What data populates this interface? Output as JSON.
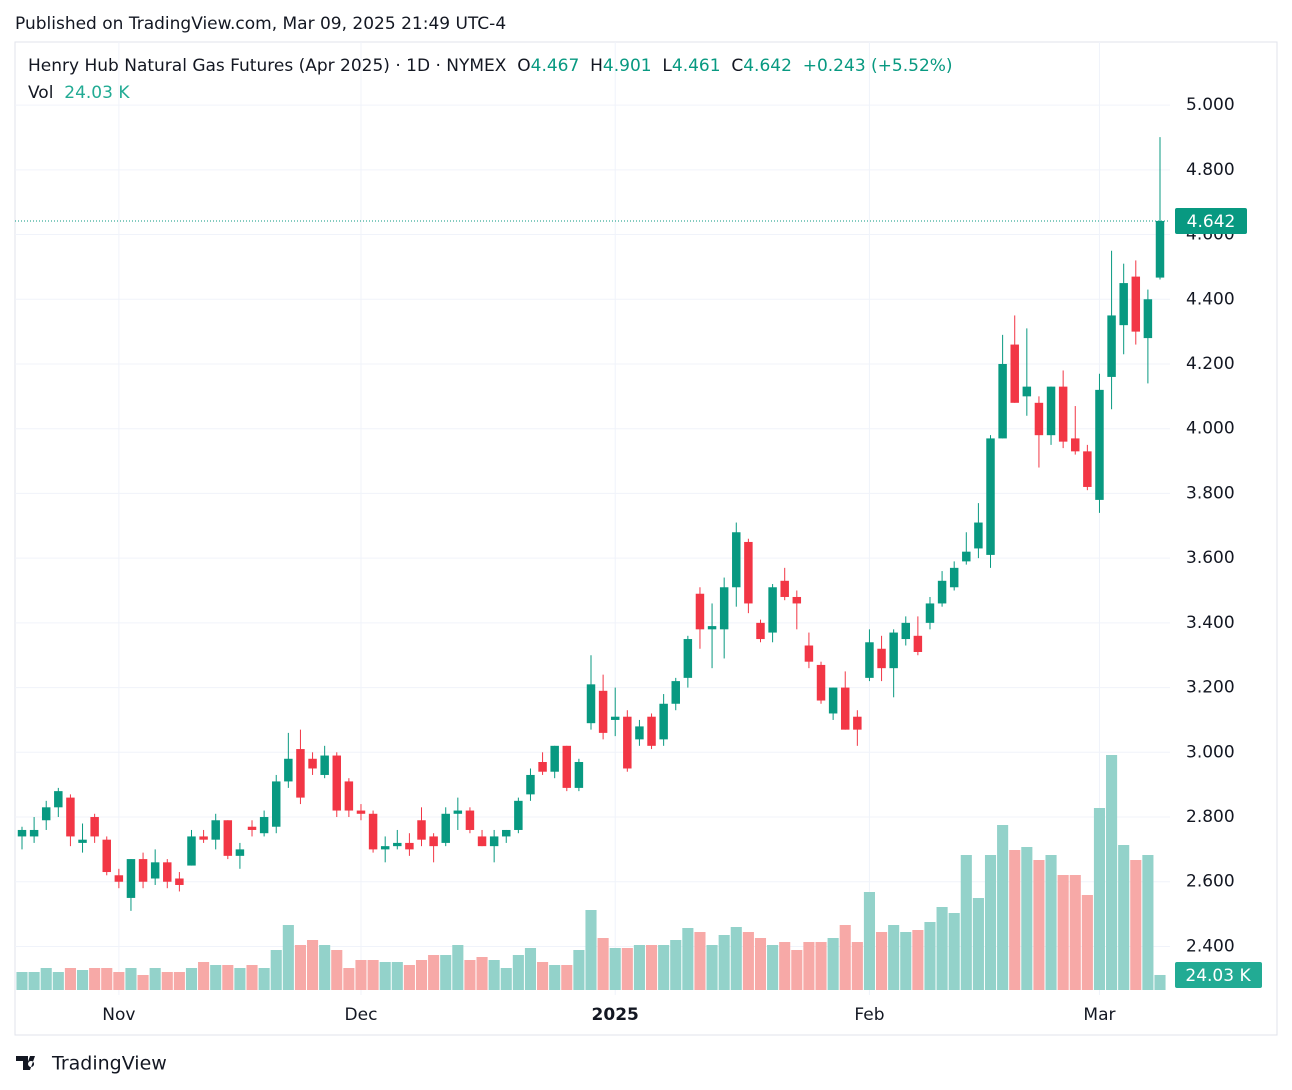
{
  "published": "Published on TradingView.com, Mar 09, 2025 21:49 UTC-4",
  "brand": "TradingView",
  "chart_data": {
    "type": "candlestick",
    "title": "Henry Hub Natural Gas Futures (Apr 2025) · 1D · NYMEX",
    "legend_keys": {
      "open": "O",
      "high": "H",
      "low": "L",
      "close": "C"
    },
    "change_label": "+0.243",
    "change_pct_label": "(+5.52%)",
    "up_color": "#089981",
    "down_color": "#f23645",
    "categories": [
      null,
      null,
      null,
      null,
      null,
      null,
      null,
      null,
      "Nov",
      null,
      null,
      null,
      null,
      null,
      null,
      null,
      null,
      null,
      null,
      null,
      null,
      null,
      null,
      null,
      null,
      null,
      null,
      null,
      "Dec",
      null,
      null,
      null,
      null,
      null,
      null,
      null,
      null,
      null,
      null,
      null,
      null,
      null,
      null,
      null,
      null,
      null,
      null,
      null,
      null,
      "2025",
      null,
      null,
      null,
      null,
      null,
      null,
      null,
      null,
      null,
      null,
      null,
      null,
      null,
      null,
      null,
      null,
      null,
      null,
      null,
      null,
      "Feb",
      null,
      null,
      null,
      null,
      null,
      null,
      null,
      null,
      null,
      null,
      null,
      null,
      null,
      null,
      null,
      null,
      null,
      null,
      "Mar",
      null,
      null,
      null,
      null,
      null
    ],
    "open": [
      2.74,
      2.74,
      2.79,
      2.83,
      2.86,
      2.72,
      2.8,
      2.73,
      2.62,
      2.55,
      2.67,
      2.61,
      2.66,
      2.61,
      2.65,
      2.74,
      2.73,
      2.79,
      2.68,
      2.77,
      2.75,
      2.77,
      2.91,
      3.01,
      2.98,
      2.93,
      2.99,
      2.91,
      2.82,
      2.81,
      2.7,
      2.71,
      2.72,
      2.79,
      2.74,
      2.72,
      2.81,
      2.82,
      2.74,
      2.71,
      2.74,
      2.76,
      2.87,
      2.97,
      2.94,
      3.02,
      2.89,
      3.09,
      3.19,
      3.1,
      3.11,
      3.04,
      3.11,
      3.04,
      3.15,
      3.23,
      3.49,
      3.38,
      3.38,
      3.51,
      3.65,
      3.4,
      3.37,
      3.53,
      3.48,
      3.33,
      3.27,
      3.12,
      3.2,
      3.11,
      3.23,
      3.32,
      3.26,
      3.35,
      3.36,
      3.4,
      3.46,
      3.51,
      3.59,
      3.63,
      3.61,
      3.97,
      4.26,
      4.1,
      4.08,
      3.98,
      4.13,
      3.97,
      3.93,
      3.78,
      4.16,
      4.32,
      4.47,
      4.28,
      4.467
    ],
    "high": [
      2.77,
      2.8,
      2.85,
      2.89,
      2.87,
      2.78,
      2.81,
      2.74,
      2.64,
      2.67,
      2.69,
      2.7,
      2.67,
      2.63,
      2.76,
      2.76,
      2.81,
      2.79,
      2.72,
      2.79,
      2.82,
      2.93,
      3.06,
      3.07,
      3.0,
      3.02,
      3.0,
      2.92,
      2.84,
      2.82,
      2.74,
      2.76,
      2.75,
      2.83,
      2.75,
      2.83,
      2.86,
      2.83,
      2.76,
      2.76,
      2.76,
      2.86,
      2.95,
      3.0,
      3.02,
      3.02,
      2.98,
      3.3,
      3.24,
      3.2,
      3.13,
      3.1,
      3.12,
      3.18,
      3.23,
      3.36,
      3.51,
      3.46,
      3.54,
      3.71,
      3.66,
      3.41,
      3.52,
      3.57,
      3.5,
      3.37,
      3.28,
      3.2,
      3.25,
      3.13,
      3.38,
      3.36,
      3.38,
      3.42,
      3.42,
      3.48,
      3.56,
      3.59,
      3.68,
      3.77,
      3.98,
      4.29,
      4.35,
      4.31,
      4.1,
      4.13,
      4.18,
      4.07,
      3.95,
      4.17,
      4.55,
      4.51,
      4.52,
      4.43,
      4.901
    ],
    "low": [
      2.7,
      2.72,
      2.76,
      2.8,
      2.71,
      2.69,
      2.72,
      2.62,
      2.58,
      2.51,
      2.58,
      2.59,
      2.58,
      2.57,
      2.65,
      2.72,
      2.7,
      2.67,
      2.64,
      2.74,
      2.74,
      2.75,
      2.89,
      2.84,
      2.93,
      2.92,
      2.8,
      2.8,
      2.79,
      2.69,
      2.66,
      2.7,
      2.68,
      2.71,
      2.66,
      2.71,
      2.76,
      2.75,
      2.71,
      2.66,
      2.72,
      2.75,
      2.85,
      2.93,
      2.92,
      2.88,
      2.88,
      3.07,
      3.04,
      3.05,
      2.94,
      3.02,
      3.01,
      3.02,
      3.13,
      3.2,
      3.32,
      3.26,
      3.29,
      3.45,
      3.43,
      3.34,
      3.34,
      3.47,
      3.38,
      3.26,
      3.15,
      3.1,
      3.07,
      3.02,
      3.22,
      3.22,
      3.17,
      3.33,
      3.3,
      3.38,
      3.45,
      3.5,
      3.58,
      3.6,
      3.57,
      3.97,
      4.08,
      4.04,
      3.88,
      3.95,
      3.94,
      3.92,
      3.81,
      3.74,
      4.06,
      4.23,
      4.26,
      4.14,
      4.461
    ],
    "close": [
      2.76,
      2.76,
      2.83,
      2.88,
      2.74,
      2.73,
      2.74,
      2.63,
      2.6,
      2.67,
      2.6,
      2.66,
      2.6,
      2.59,
      2.74,
      2.73,
      2.79,
      2.68,
      2.7,
      2.76,
      2.8,
      2.91,
      2.98,
      2.86,
      2.95,
      2.99,
      2.82,
      2.82,
      2.81,
      2.7,
      2.71,
      2.72,
      2.7,
      2.73,
      2.71,
      2.81,
      2.82,
      2.76,
      2.71,
      2.74,
      2.76,
      2.85,
      2.93,
      2.94,
      3.02,
      2.89,
      2.97,
      3.21,
      3.06,
      3.11,
      2.95,
      3.08,
      3.02,
      3.15,
      3.22,
      3.35,
      3.38,
      3.39,
      3.51,
      3.68,
      3.46,
      3.35,
      3.51,
      3.48,
      3.46,
      3.28,
      3.16,
      3.2,
      3.07,
      3.07,
      3.34,
      3.26,
      3.37,
      3.4,
      3.31,
      3.46,
      3.53,
      3.57,
      3.62,
      3.71,
      3.97,
      4.2,
      4.08,
      4.13,
      3.98,
      4.13,
      3.96,
      3.93,
      3.82,
      4.12,
      4.35,
      4.45,
      4.3,
      4.4,
      4.642
    ],
    "volume": {
      "name": "Vol",
      "up_color": "#93d2ca",
      "down_color": "#f7a9a7",
      "tag_color": "#22ab94",
      "values": [
        28.8,
        28.8,
        35.2,
        28.8,
        35.2,
        32,
        35.2,
        35.2,
        28.8,
        35.2,
        24,
        35.2,
        28.8,
        28.8,
        35.2,
        44.8,
        40,
        40,
        35.2,
        40,
        35.2,
        64,
        104,
        72,
        80,
        72,
        64,
        35.2,
        48,
        48,
        44.8,
        44.8,
        40,
        48,
        56,
        56,
        72,
        48,
        52.8,
        48,
        35.2,
        56,
        67.2,
        44.8,
        40,
        40,
        64,
        128,
        83.2,
        67.2,
        67.2,
        72,
        72,
        72,
        80,
        99.2,
        92.8,
        72,
        88,
        100.8,
        92.8,
        83.2,
        72,
        76.8,
        64,
        76.8,
        76.8,
        83.2,
        104,
        76.8,
        156.8,
        92.8,
        104,
        92.8,
        96,
        108.8,
        132.8,
        123.2,
        216,
        147.2,
        216,
        264,
        224,
        228.8,
        208,
        216,
        184,
        184,
        152,
        291.2,
        376,
        232,
        208,
        216,
        24.03
      ],
      "value_labels": [
        null,
        null,
        null,
        null,
        null,
        null,
        null,
        null,
        null,
        null,
        null,
        null,
        null,
        null,
        null,
        null,
        null,
        null,
        null,
        null,
        null,
        null,
        null,
        null,
        null,
        null,
        null,
        null,
        null,
        null,
        null,
        null,
        null,
        null,
        null,
        null,
        null,
        null,
        null,
        null,
        null,
        null,
        null,
        null,
        null,
        null,
        null,
        null,
        null,
        null,
        null,
        null,
        null,
        null,
        null,
        null,
        null,
        null,
        null,
        null,
        null,
        null,
        null,
        null,
        null,
        null,
        null,
        null,
        null,
        null,
        null,
        null,
        null,
        null,
        null,
        null,
        null,
        null,
        null,
        null,
        null,
        null,
        null,
        null,
        null,
        null,
        null,
        null,
        null,
        null,
        null,
        null,
        null,
        null,
        "24.03 K"
      ]
    },
    "ylim": [
      2.25,
      5.195
    ],
    "yticks": [
      {
        "value": 2.4,
        "label": "2.400"
      },
      {
        "value": 2.6,
        "label": "2.600"
      },
      {
        "value": 2.8,
        "label": "2.800"
      },
      {
        "value": 3,
        "label": "3.000"
      },
      {
        "value": 3.2,
        "label": "3.200"
      },
      {
        "value": 3.4,
        "label": "3.400"
      },
      {
        "value": 3.6,
        "label": "3.600"
      },
      {
        "value": 3.8,
        "label": "3.800"
      },
      {
        "value": 4,
        "label": "4.000"
      },
      {
        "value": 4.2,
        "label": "4.200"
      },
      {
        "value": 4.4,
        "label": "4.400"
      },
      {
        "value": 4.6,
        "label": "4.600"
      },
      {
        "value": 4.8,
        "label": "4.800"
      },
      {
        "value": 5,
        "label": "5.000"
      }
    ],
    "grid": true
  }
}
